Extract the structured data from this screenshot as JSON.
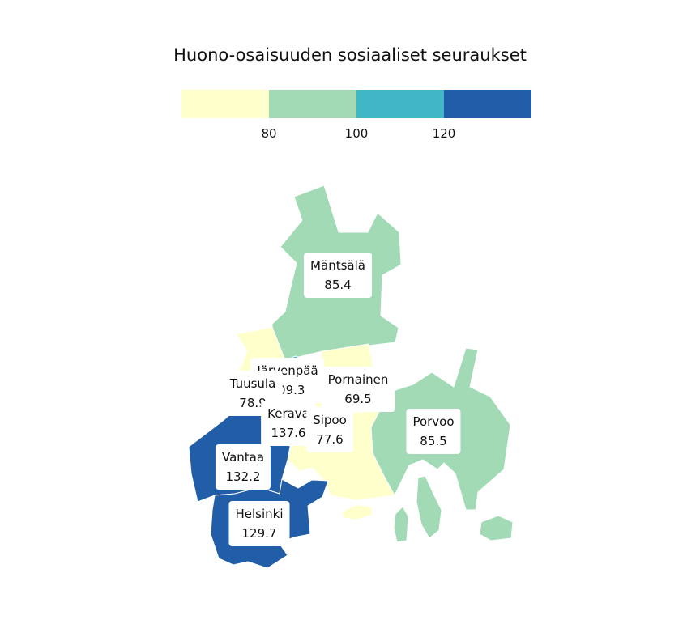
{
  "title": "Huono-osaisuuden sosiaaliset seuraukset",
  "legend": {
    "colors": [
      "#ffffcc",
      "#a1dab4",
      "#41b6c4",
      "#225ea8"
    ],
    "ticks": [
      "80",
      "100",
      "120"
    ]
  },
  "municipalities": {
    "mantsala": {
      "name": "Mäntsälä",
      "value": "85.4",
      "color": "#a1dab4"
    },
    "jarvenpaa": {
      "name": "Järvenpää",
      "value": "109.3",
      "color": "#41b6c4"
    },
    "tuusula": {
      "name": "Tuusula",
      "value": "78.9",
      "color": "#ffffcc"
    },
    "pornainen": {
      "name": "Pornainen",
      "value": "69.5",
      "color": "#ffffcc"
    },
    "kerava": {
      "name": "Kerava",
      "value": "137.6",
      "color": "#225ea8"
    },
    "sipoo": {
      "name": "Sipoo",
      "value": "77.6",
      "color": "#ffffcc"
    },
    "porvoo": {
      "name": "Porvoo",
      "value": "85.5",
      "color": "#a1dab4"
    },
    "vantaa": {
      "name": "Vantaa",
      "value": "132.2",
      "color": "#225ea8"
    },
    "helsinki": {
      "name": "Helsinki",
      "value": "129.7",
      "color": "#225ea8"
    }
  }
}
